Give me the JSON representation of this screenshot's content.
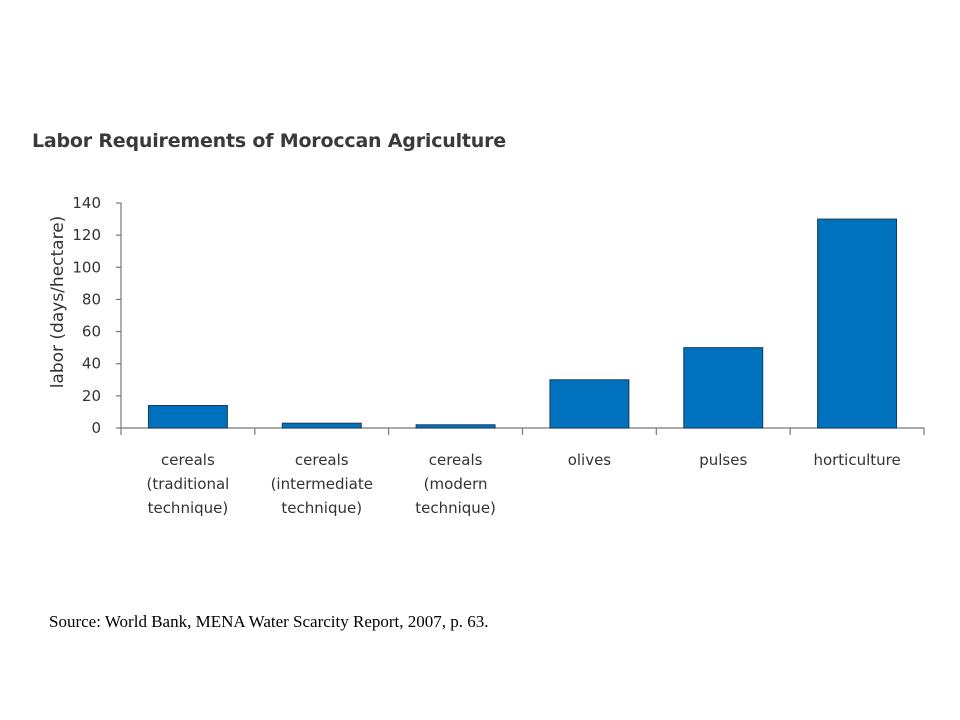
{
  "chart_data": {
    "type": "bar",
    "title": "Labor Requirements of Moroccan Agriculture",
    "ylabel": "labor (days/hectare)",
    "xlabel": "",
    "ylim": [
      0,
      140
    ],
    "yticks": [
      0,
      20,
      40,
      60,
      80,
      100,
      120,
      140
    ],
    "categories": [
      [
        "cereals",
        "(traditional",
        "technique)"
      ],
      [
        "cereals",
        "(intermediate",
        "technique)"
      ],
      [
        "cereals",
        "(modern",
        "technique)"
      ],
      [
        "olives"
      ],
      [
        "pulses"
      ],
      [
        "horticulture"
      ]
    ],
    "values": [
      14,
      3,
      2,
      30,
      50,
      130
    ],
    "bar_color": "#0071bc",
    "bar_edge_color": "#1a3a5c",
    "grid": false,
    "legend": "none"
  },
  "source": "Source: World Bank, MENA Water Scarcity Report, 2007, p. 63."
}
